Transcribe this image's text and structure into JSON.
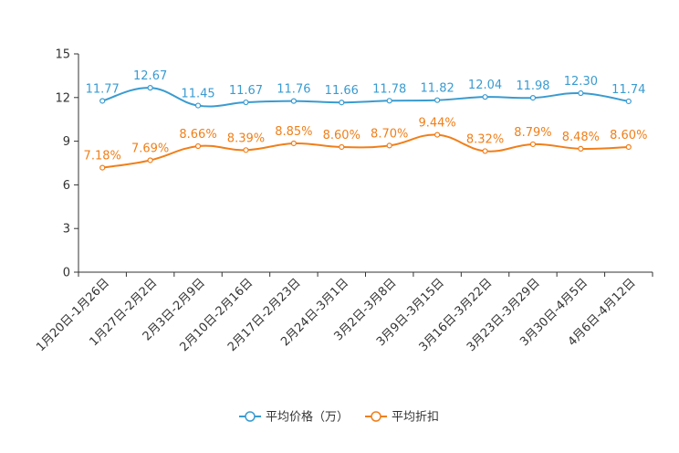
{
  "chart_data": {
    "type": "line",
    "categories": [
      "1月20日-1月26日",
      "1月27日-2月2日",
      "2月3日-2月9日",
      "2月10日-2月16日",
      "2月17日-2月23日",
      "2月24日-3月1日",
      "3月2日-3月8日",
      "3月9日-3月15日",
      "3月16日-3月22日",
      "3月23日-3月29日",
      "3月30日-4月5日",
      "4月6日-4月12日"
    ],
    "ylim": [
      0,
      15
    ],
    "yticks": [
      0,
      3,
      6,
      9,
      12,
      15
    ],
    "ytick_labels": [
      "0",
      "3",
      "6",
      "9",
      "12",
      "15"
    ],
    "series": [
      {
        "name": "平均价格（万）",
        "color": "#3a9bd0",
        "values": [
          11.77,
          12.67,
          11.45,
          11.67,
          11.76,
          11.66,
          11.78,
          11.82,
          12.04,
          11.98,
          12.3,
          11.74
        ],
        "labels": [
          "11.77",
          "12.67",
          "11.45",
          "11.67",
          "11.76",
          "11.66",
          "11.78",
          "11.82",
          "12.04",
          "11.98",
          "12.30",
          "11.74"
        ]
      },
      {
        "name": "平均折扣",
        "color": "#f07f1a",
        "values": [
          7.18,
          7.69,
          8.66,
          8.39,
          8.85,
          8.6,
          8.7,
          9.44,
          8.32,
          8.79,
          8.48,
          8.6
        ],
        "labels": [
          "7.18%",
          "7.69%",
          "8.66%",
          "8.39%",
          "8.85%",
          "8.60%",
          "8.70%",
          "9.44%",
          "8.32%",
          "8.79%",
          "8.48%",
          "8.60%"
        ]
      }
    ],
    "legend_position": "bottom-center"
  }
}
